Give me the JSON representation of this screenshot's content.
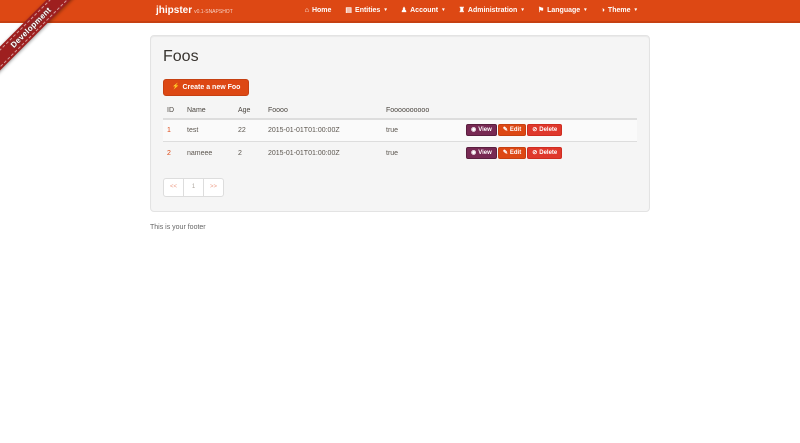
{
  "ribbon": {
    "label": "Development"
  },
  "navbar": {
    "brand": {
      "name": "jhipster",
      "version": "v0.1-SNAPSHOT"
    },
    "caret": "▾",
    "items": [
      {
        "label": "Home",
        "icon": "home-icon",
        "glyph": "⌂"
      },
      {
        "label": "Entities",
        "icon": "list-icon",
        "glyph": "▤"
      },
      {
        "label": "Account",
        "icon": "user-icon",
        "glyph": "♟"
      },
      {
        "label": "Administration",
        "icon": "tower-icon",
        "glyph": "♜"
      },
      {
        "label": "Language",
        "icon": "flag-icon",
        "glyph": "⚑"
      },
      {
        "label": "Theme",
        "icon": "adjust-icon",
        "glyph": "◑"
      }
    ]
  },
  "main": {
    "title": "Foos",
    "create_button": {
      "label": "Create a new Foo",
      "icon": "flash-icon",
      "glyph": "⚡"
    },
    "table": {
      "headers": [
        "ID",
        "Name",
        "Age",
        "Foooo",
        "Foooooooooo",
        ""
      ],
      "rows": [
        {
          "id": "1",
          "name": "test",
          "age": "22",
          "foooo": "2015-01-01T01:00:00Z",
          "foolong": "true"
        },
        {
          "id": "2",
          "name": "nameee",
          "age": "2",
          "foooo": "2015-01-01T01:00:00Z",
          "foolong": "true"
        }
      ],
      "actions": {
        "view": {
          "label": "View",
          "icon": "eye-icon",
          "glyph": "◉"
        },
        "edit": {
          "label": "Edit",
          "icon": "pencil-icon",
          "glyph": "✎"
        },
        "delete": {
          "label": "Delete",
          "icon": "ban-icon",
          "glyph": "⊘"
        }
      }
    },
    "pagination": {
      "first": "<<",
      "page": "1",
      "last": ">>"
    }
  },
  "footer": {
    "text": "This is your footer"
  },
  "colors": {
    "navbar": "#DD4814",
    "navbar_border": "#C64012",
    "primary": "#DD4814",
    "info": "#772953",
    "danger": "#DF382C",
    "ribbon": "#9E1F1F",
    "well": "#F5F5F5"
  }
}
